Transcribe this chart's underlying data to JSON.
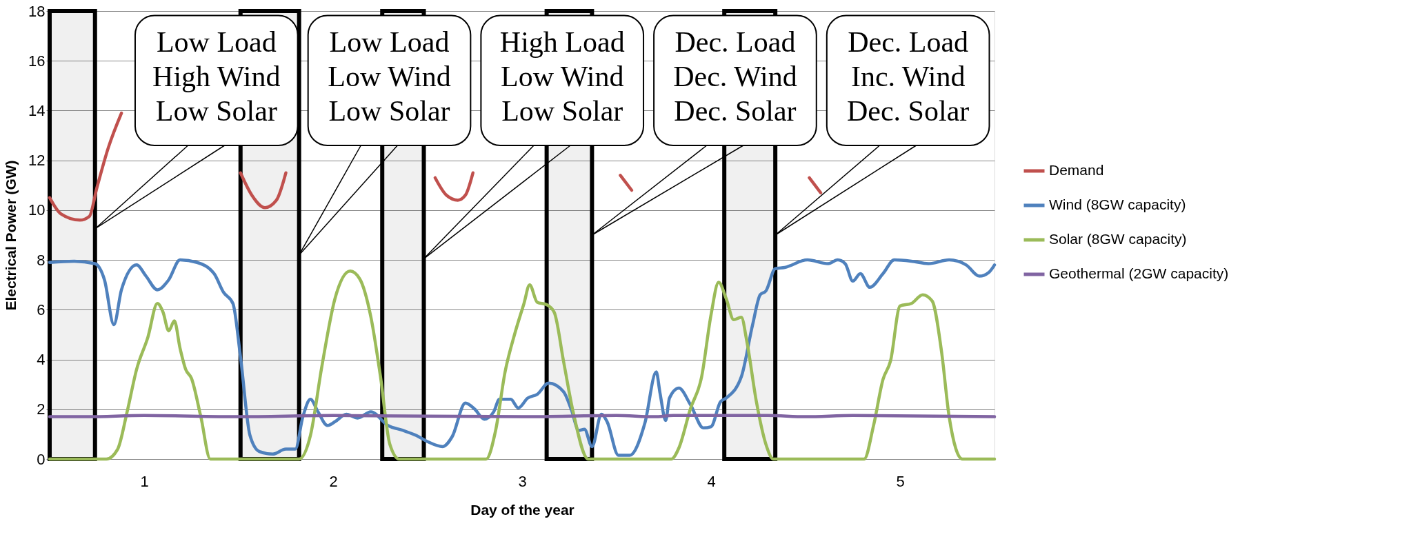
{
  "chart_data": {
    "type": "line",
    "xlabel": "Day of the year",
    "ylabel": "Electrical Power (GW)",
    "xlim": [
      0.5,
      5.5
    ],
    "xticks": [
      1,
      2,
      3,
      4,
      5
    ],
    "ylim": [
      0,
      18
    ],
    "yticks": [
      0,
      2,
      4,
      6,
      8,
      10,
      12,
      14,
      16,
      18
    ],
    "grid": "y",
    "legend": "right",
    "line_style": "solid",
    "marker": "none",
    "series": [
      {
        "name": "Demand",
        "color": "#c0504d",
        "x": [
          0.5,
          0.56,
          0.66,
          0.71,
          0.75,
          0.81,
          0.88,
          1.2,
          1.51,
          1.57,
          1.64,
          1.7,
          1.75,
          2.1,
          2.54,
          2.6,
          2.66,
          2.7,
          2.74,
          3.1,
          3.52,
          3.58,
          4.0,
          4.52,
          4.58
        ],
        "values": [
          10.5,
          9.85,
          9.6,
          9.75,
          10.9,
          12.5,
          13.9,
          null,
          11.5,
          10.6,
          10.1,
          10.4,
          11.5,
          null,
          11.3,
          10.6,
          10.4,
          10.6,
          11.5,
          null,
          11.4,
          10.8,
          null,
          11.3,
          10.7
        ]
      },
      {
        "name": "Wind (8GW capacity)",
        "color": "#4f81bd",
        "x": [
          0.5,
          0.63,
          0.74,
          0.79,
          0.84,
          0.88,
          0.96,
          1.01,
          1.07,
          1.13,
          1.19,
          1.28,
          1.37,
          1.42,
          1.47,
          1.51,
          1.56,
          1.61,
          1.68,
          1.75,
          1.8,
          1.84,
          1.88,
          1.92,
          1.97,
          2.01,
          2.07,
          2.13,
          2.2,
          2.29,
          2.37,
          2.44,
          2.5,
          2.58,
          2.63,
          2.7,
          2.75,
          2.8,
          2.85,
          2.88,
          2.94,
          2.98,
          3.03,
          3.08,
          3.14,
          3.22,
          3.26,
          3.3,
          3.33,
          3.37,
          3.42,
          3.45,
          3.51,
          3.57,
          3.65,
          3.71,
          3.73,
          3.76,
          3.78,
          3.83,
          3.89,
          3.96,
          4.0,
          4.05,
          4.08,
          4.16,
          4.22,
          4.26,
          4.29,
          4.34,
          4.39,
          4.51,
          4.62,
          4.67,
          4.71,
          4.75,
          4.79,
          4.84,
          4.91,
          4.97,
          5.06,
          5.15,
          5.26,
          5.35,
          5.42,
          5.47,
          5.5
        ],
        "values": [
          7.9,
          7.95,
          7.85,
          7.2,
          5.4,
          6.8,
          7.8,
          7.35,
          6.8,
          7.2,
          8.0,
          7.9,
          7.45,
          6.7,
          6.25,
          4.1,
          0.95,
          0.3,
          0.2,
          0.4,
          0.4,
          1.7,
          2.4,
          1.9,
          1.35,
          1.5,
          1.8,
          1.65,
          1.9,
          1.35,
          1.15,
          0.95,
          0.7,
          0.5,
          0.9,
          2.25,
          2.0,
          1.6,
          1.9,
          2.4,
          2.4,
          2.05,
          2.45,
          2.6,
          3.05,
          2.7,
          2.0,
          1.15,
          1.2,
          0.5,
          1.8,
          1.5,
          0.15,
          0.15,
          1.45,
          3.5,
          2.65,
          1.55,
          2.45,
          2.85,
          2.2,
          1.25,
          1.3,
          2.3,
          2.45,
          3.3,
          5.4,
          6.6,
          6.75,
          7.65,
          7.7,
          8.0,
          7.85,
          8.0,
          7.85,
          7.15,
          7.45,
          6.9,
          7.45,
          8.0,
          7.95,
          7.85,
          8.0,
          7.8,
          7.35,
          7.5,
          7.8
        ]
      },
      {
        "name": "Solar (8GW capacity)",
        "color": "#9bbb59",
        "x": [
          0.5,
          0.8,
          0.86,
          0.91,
          0.96,
          1.02,
          1.07,
          1.1,
          1.13,
          1.16,
          1.19,
          1.22,
          1.25,
          1.3,
          1.35,
          1.82,
          1.88,
          1.94,
          2.01,
          2.09,
          2.14,
          2.2,
          2.25,
          2.3,
          2.35,
          2.81,
          2.86,
          2.91,
          2.96,
          3.01,
          3.04,
          3.08,
          3.13,
          3.17,
          3.22,
          3.27,
          3.35,
          3.79,
          3.83,
          3.89,
          3.95,
          4.0,
          4.04,
          4.08,
          4.12,
          4.16,
          4.19,
          4.24,
          4.29,
          4.33,
          4.81,
          4.86,
          4.91,
          4.95,
          5.0,
          5.06,
          5.12,
          5.17,
          5.22,
          5.26,
          5.33,
          5.5
        ],
        "values": [
          0,
          0,
          0.4,
          1.9,
          3.6,
          4.9,
          6.25,
          5.9,
          5.15,
          5.55,
          4.45,
          3.6,
          3.25,
          1.7,
          0,
          0,
          0.95,
          3.7,
          6.45,
          7.55,
          7.25,
          5.7,
          3.35,
          0.6,
          0,
          0,
          1.15,
          3.5,
          5.0,
          6.25,
          7.0,
          6.3,
          6.2,
          5.9,
          3.9,
          1.9,
          0,
          0,
          0.45,
          2.0,
          3.3,
          5.8,
          7.1,
          6.45,
          5.6,
          5.7,
          4.7,
          2.3,
          0.6,
          0,
          0,
          1.35,
          3.2,
          3.95,
          6.15,
          6.25,
          6.6,
          6.35,
          4.3,
          1.7,
          0,
          0
        ]
      },
      {
        "name": "Geothermal (2GW capacity)",
        "color": "#8064a2",
        "x": [
          0.5,
          0.7,
          1.0,
          1.5,
          2.0,
          3.0,
          3.5,
          3.7,
          3.8,
          4.3,
          4.5,
          4.75,
          5.5
        ],
        "values": [
          1.7,
          1.7,
          1.75,
          1.7,
          1.75,
          1.7,
          1.75,
          1.7,
          1.75,
          1.75,
          1.7,
          1.75,
          1.7
        ]
      }
    ],
    "bands": [
      {
        "axis": "x",
        "from": 0.5,
        "to": 0.74,
        "color": "#000000"
      },
      {
        "axis": "x",
        "from": 1.51,
        "to": 1.82,
        "color": "#000000"
      },
      {
        "axis": "x",
        "from": 2.26,
        "to": 2.48,
        "color": "#000000"
      },
      {
        "axis": "x",
        "from": 3.13,
        "to": 3.37,
        "color": "#000000"
      },
      {
        "axis": "x",
        "from": 4.07,
        "to": 4.34,
        "color": "#000000"
      }
    ],
    "annotations": [
      {
        "text": "Low Load\nHigh Wind\nLow Solar",
        "x": 0.74,
        "y": 9.25
      },
      {
        "text": "Low Load\nLow Wind\nLow Solar",
        "x": 1.82,
        "y": 8.2
      },
      {
        "text": "High Load\nLow Wind\nLow Solar",
        "x": 2.48,
        "y": 8.05
      },
      {
        "text": "Dec. Load\nDec. Wind\nDec. Solar",
        "x": 3.37,
        "y": 9.0
      },
      {
        "text": "Dec. Load\nInc. Wind\nDec. Solar",
        "x": 4.34,
        "y": 9.0
      }
    ]
  }
}
